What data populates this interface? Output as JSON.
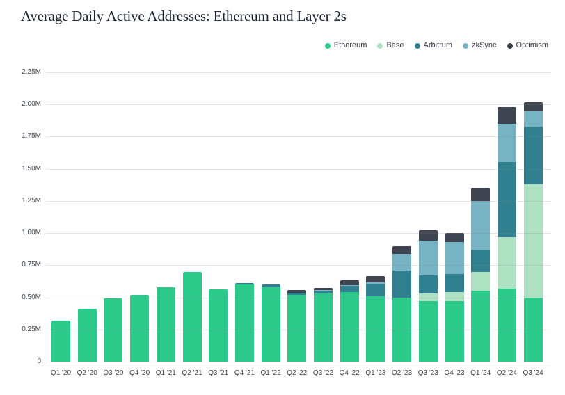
{
  "title": "Average Daily Active Addresses: Ethereum and Layer 2s",
  "legend": [
    {
      "label": "Ethereum",
      "color": "#2bc98a"
    },
    {
      "label": "Base",
      "color": "#aee1c1"
    },
    {
      "label": "Arbitrum",
      "color": "#31808f"
    },
    {
      "label": "zkSync",
      "color": "#77b3c3"
    },
    {
      "label": "Optimism",
      "color": "#3e4450"
    }
  ],
  "chart_data": {
    "type": "bar",
    "subtype": "stacked",
    "title": "Average Daily Active Addresses: Ethereum and Layer 2s",
    "unit": "millions of addresses",
    "categories": [
      "Q1 '20",
      "Q2 '20",
      "Q3 '20",
      "Q4 '20",
      "Q1 '21",
      "Q2 '21",
      "Q3 '21",
      "Q4 '21",
      "Q1 '22",
      "Q2 '22",
      "Q3 '22",
      "Q4 '22",
      "Q1 '23",
      "Q2 '23",
      "Q3 '23",
      "Q4 '23",
      "Q1 '24",
      "Q2 '24",
      "Q3 '24"
    ],
    "series": [
      {
        "name": "Ethereum",
        "color": "#2bc98a",
        "values": [
          0.32,
          0.41,
          0.49,
          0.52,
          0.58,
          0.7,
          0.56,
          0.6,
          0.58,
          0.52,
          0.53,
          0.54,
          0.51,
          0.5,
          0.47,
          0.47,
          0.55,
          0.57,
          0.5
        ]
      },
      {
        "name": "Base",
        "color": "#aee1c1",
        "values": [
          0,
          0,
          0,
          0,
          0,
          0,
          0,
          0,
          0,
          0,
          0,
          0,
          0,
          0,
          0.06,
          0.07,
          0.15,
          0.4,
          0.88
        ]
      },
      {
        "name": "Arbitrum",
        "color": "#31808f",
        "values": [
          0,
          0,
          0,
          0,
          0,
          0,
          0,
          0.01,
          0.02,
          0.015,
          0.02,
          0.05,
          0.095,
          0.21,
          0.14,
          0.14,
          0.17,
          0.58,
          0.45
        ]
      },
      {
        "name": "zkSync",
        "color": "#77b3c3",
        "values": [
          0,
          0,
          0,
          0,
          0,
          0,
          0,
          0,
          0,
          0,
          0.005,
          0.005,
          0.01,
          0.13,
          0.27,
          0.25,
          0.38,
          0.3,
          0.12
        ]
      },
      {
        "name": "Optimism",
        "color": "#3e4450",
        "values": [
          0,
          0,
          0,
          0,
          0,
          0,
          0,
          0,
          0,
          0.02,
          0.02,
          0.04,
          0.05,
          0.06,
          0.08,
          0.07,
          0.1,
          0.13,
          0.07
        ]
      }
    ],
    "y_axis": {
      "ticks": [
        "0",
        "0.25M",
        "0.50M",
        "0.75M",
        "1.00M",
        "1.25M",
        "1.50M",
        "1.75M",
        "2.00M",
        "2.25M"
      ],
      "tick_values": [
        0,
        0.25,
        0.5,
        0.75,
        1.0,
        1.25,
        1.5,
        1.75,
        2.0,
        2.25
      ],
      "ylim": [
        0,
        2.25
      ]
    },
    "grid": "horizontal",
    "legend_position": "top-right",
    "totals": [
      0.32,
      0.41,
      0.49,
      0.52,
      0.58,
      0.7,
      0.56,
      0.61,
      0.6,
      0.555,
      0.575,
      0.635,
      0.665,
      0.9,
      1.02,
      1.0,
      1.35,
      1.98,
      2.02
    ]
  }
}
